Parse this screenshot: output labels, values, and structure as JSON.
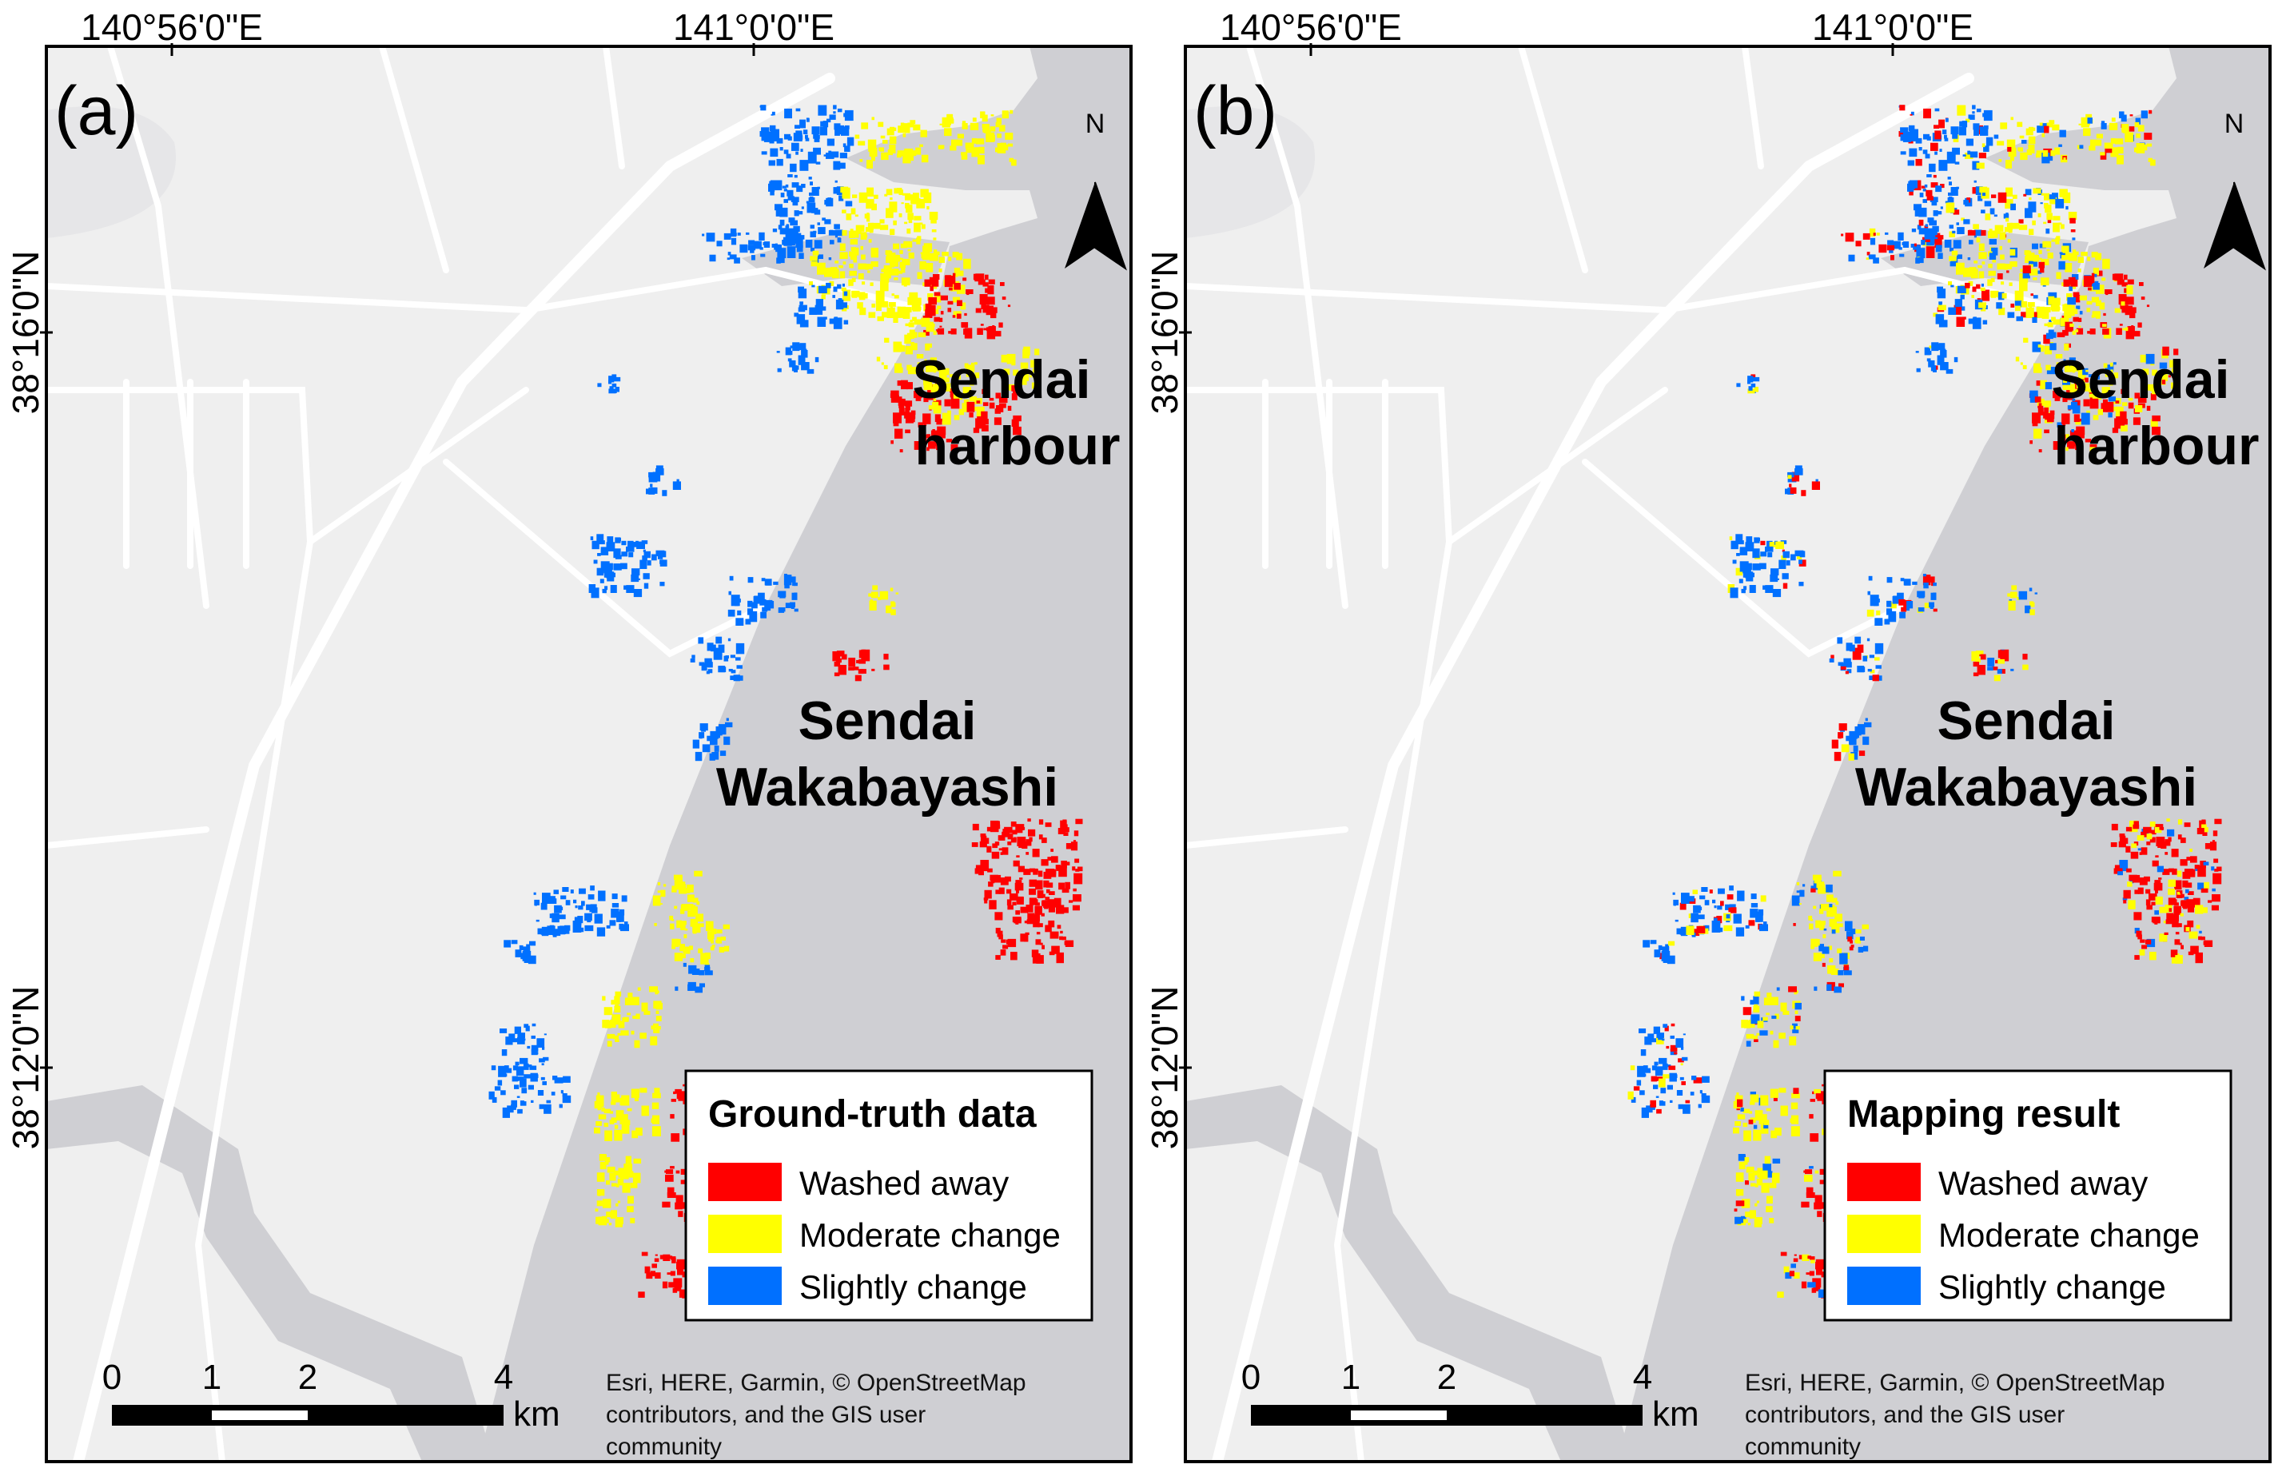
{
  "graticule": {
    "lon_labels": [
      "140°56'0\"E",
      "141°0'0\"E"
    ],
    "lat_labels": [
      "38°16'0\"N",
      "38°12'0\"N"
    ]
  },
  "place_labels": {
    "harbour_line1": "Sendai",
    "harbour_line2": "harbour",
    "wakabayashi_line1": "Sendai",
    "wakabayashi_line2": "Wakabayashi"
  },
  "north_arrow": {
    "label": "N",
    "icon": "north-arrow-icon"
  },
  "scale_bar": {
    "ticks": [
      "0",
      "1",
      "2",
      "4"
    ],
    "unit": "km"
  },
  "attribution": {
    "line1": "Esri, HERE, Garmin, © OpenStreetMap",
    "line2": "contributors, and the GIS user",
    "line3": "community"
  },
  "classes": [
    {
      "label": "Washed away",
      "color": "#ff0000"
    },
    {
      "label": "Moderate change",
      "color": "#ffff00"
    },
    {
      "label": "Slightly change",
      "color": "#0070ff"
    }
  ],
  "colors": {
    "sea": "#cfcfd3",
    "land": "#efefef",
    "road": "#ffffff",
    "frame": "#000000"
  },
  "panels": [
    {
      "id": "a",
      "tag": "(a)",
      "legend_title": "Ground-truth data",
      "legend_items": [
        "Washed away",
        "Moderate change",
        "Slightly change"
      ]
    },
    {
      "id": "b",
      "tag": "(b)",
      "legend_title": "Mapping result",
      "legend_items": [
        "Washed away",
        "Moderate change",
        "Slightly change"
      ]
    }
  ]
}
